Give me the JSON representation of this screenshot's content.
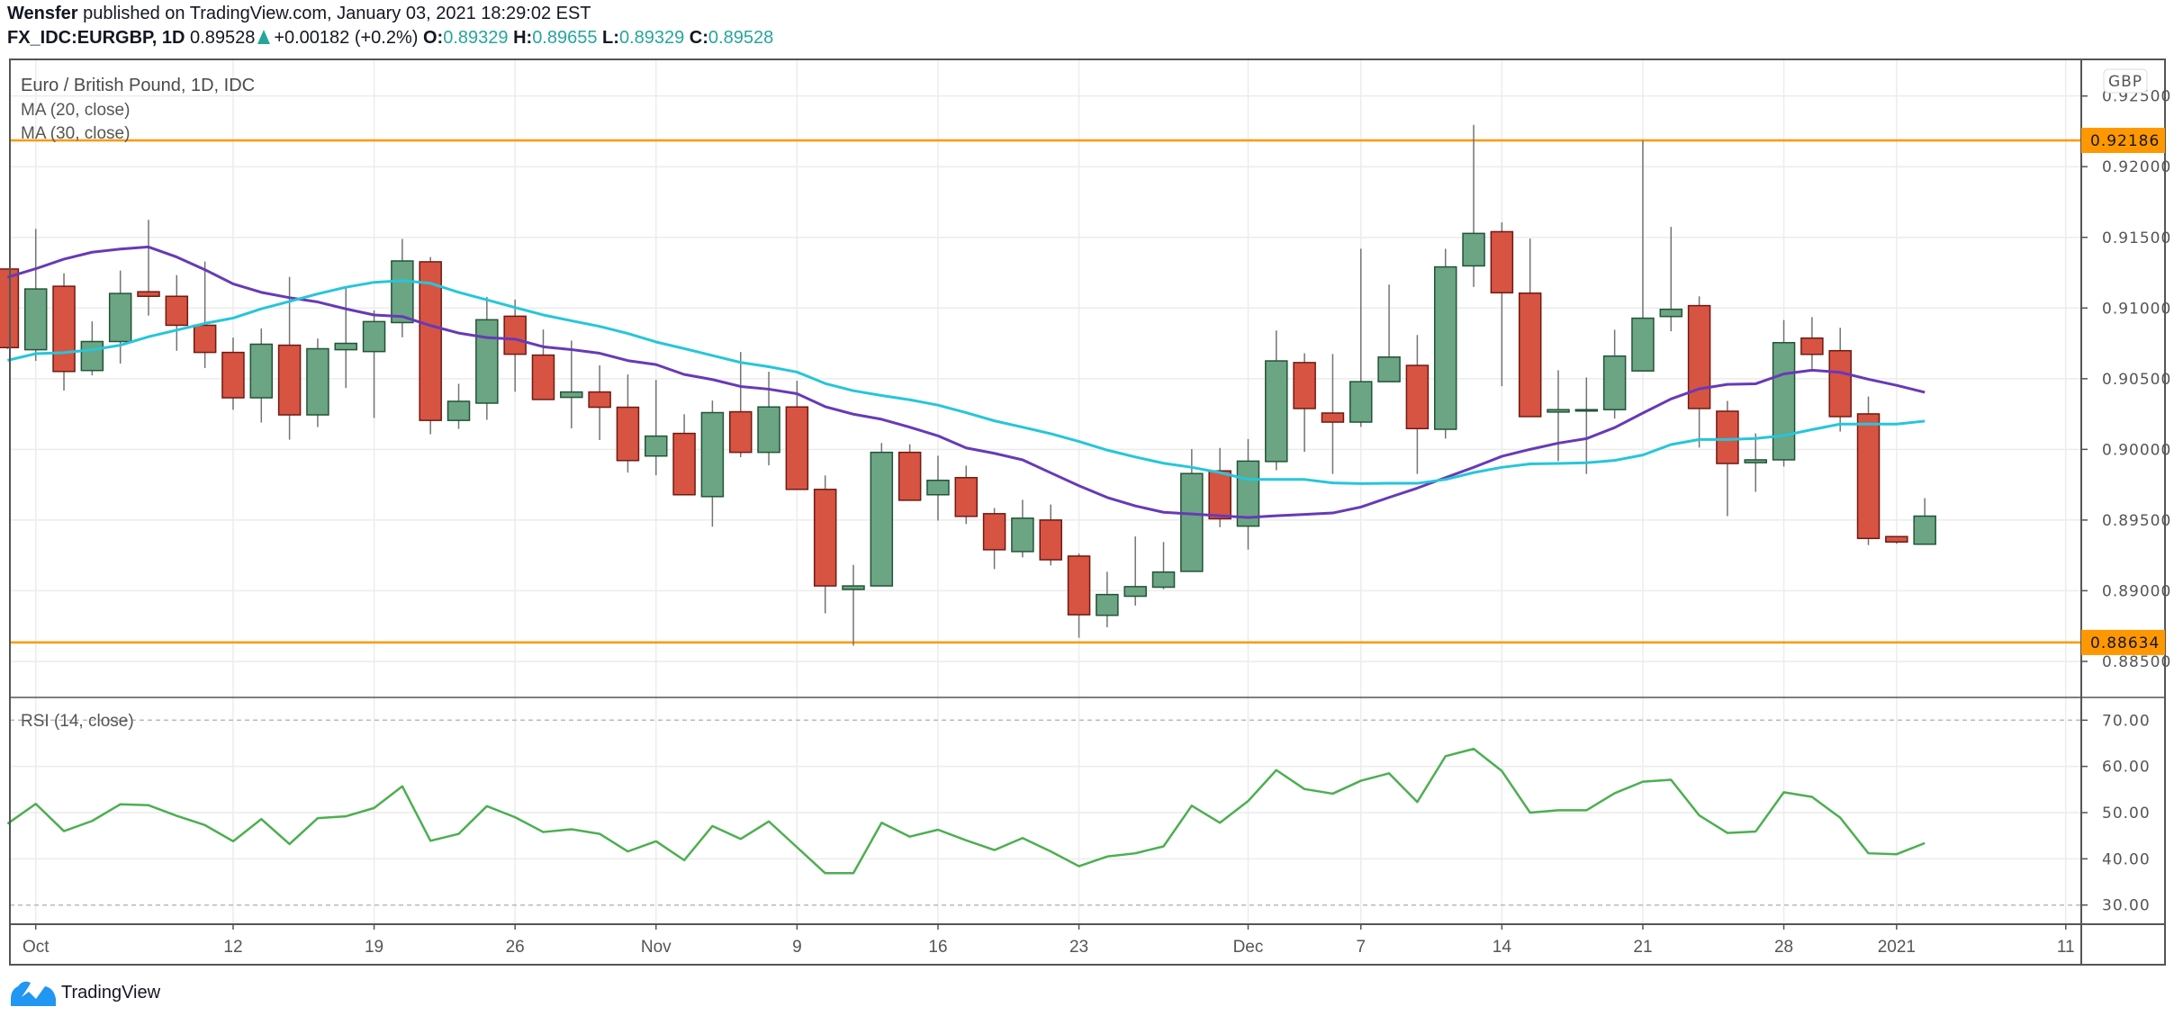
{
  "header": {
    "author": "Wensfer",
    "published": "published on TradingView.com, January 03, 2021 18:29:02 EST",
    "symbol": "FX_IDC:EURGBP, 1D",
    "last": "0.89528",
    "change": "+0.00182 (+0.2%)",
    "direction_icon": "triangle-up-icon",
    "o_label": "O:",
    "o": "0.89329",
    "h_label": "H:",
    "h": "0.89655",
    "l_label": "L:",
    "l": "0.89329",
    "c_label": "C:",
    "c": "0.89528"
  },
  "legend": {
    "title": "Euro / British Pound, 1D, IDC",
    "ma20": "MA (20, close)",
    "ma30": "MA (30, close)",
    "rsi": "RSI (14, close)"
  },
  "currency": "GBP",
  "footer": {
    "brand": "TradingView",
    "logo_icon": "tradingview-logo-icon"
  },
  "colors": {
    "up": "#6ba583",
    "up_border": "#225437",
    "down": "#d75442",
    "down_border": "#6f1a13",
    "wick": "#737375",
    "ma20": "#673ab7",
    "ma30": "#26c6da",
    "rsi": "#4caf50",
    "level": "#ff9800"
  },
  "chart_data": [
    {
      "type": "candlestick",
      "title": "Euro / British Pound, 1D, IDC",
      "ylim": [
        0.883,
        0.9262
      ],
      "y_ticks": [
        "0.88500",
        "0.89000",
        "0.89500",
        "0.90000",
        "0.90500",
        "0.91000",
        "0.91500",
        "0.92000",
        "0.92500"
      ],
      "x_ticks": [
        "Oct",
        "12",
        "19",
        "26",
        "Nov",
        "9",
        "16",
        "23",
        "Dec",
        "7",
        "14",
        "21",
        "28",
        "2021",
        "11"
      ],
      "horizontal_levels": [
        {
          "value": 0.92186,
          "label": "0.92186"
        },
        {
          "value": 0.88634,
          "label": "0.88634"
        }
      ],
      "grid": true,
      "ohlc": [
        [
          0.91276,
          0.9128,
          0.9071,
          0.9072
        ],
        [
          0.90705,
          0.9156,
          0.90626,
          0.91135
        ],
        [
          0.91154,
          0.91246,
          0.90415,
          0.90551
        ],
        [
          0.90558,
          0.90906,
          0.90524,
          0.90763
        ],
        [
          0.90763,
          0.91265,
          0.90607,
          0.91103
        ],
        [
          0.91115,
          0.91624,
          0.90947,
          0.91083
        ],
        [
          0.91083,
          0.91233,
          0.90697,
          0.90878
        ],
        [
          0.90878,
          0.91329,
          0.90575,
          0.90686
        ],
        [
          0.90686,
          0.90791,
          0.9028,
          0.90365
        ],
        [
          0.90365,
          0.90855,
          0.9019,
          0.90744
        ],
        [
          0.90737,
          0.9122,
          0.90068,
          0.90244
        ],
        [
          0.90244,
          0.90784,
          0.90158,
          0.90712
        ],
        [
          0.90705,
          0.91147,
          0.90434,
          0.9075
        ],
        [
          0.90692,
          0.90983,
          0.90222,
          0.90904
        ],
        [
          0.90897,
          0.91489,
          0.90793,
          0.91333
        ],
        [
          0.91327,
          0.91361,
          0.90107,
          0.90205
        ],
        [
          0.90205,
          0.90464,
          0.90145,
          0.9034
        ],
        [
          0.90327,
          0.91079,
          0.90209,
          0.90917
        ],
        [
          0.90942,
          0.9106,
          0.90408,
          0.90673
        ],
        [
          0.90667,
          0.90848,
          0.90353,
          0.90353
        ],
        [
          0.90368,
          0.9077,
          0.90149,
          0.90406
        ],
        [
          0.90406,
          0.90594,
          0.90066,
          0.90298
        ],
        [
          0.90298,
          0.9053,
          0.89836,
          0.89921
        ],
        [
          0.89953,
          0.90491,
          0.89817,
          0.90094
        ],
        [
          0.90113,
          0.90249,
          0.89679,
          0.89679
        ],
        [
          0.89666,
          0.90345,
          0.89453,
          0.9026
        ],
        [
          0.90266,
          0.90689,
          0.89945,
          0.89979
        ],
        [
          0.89979,
          0.90549,
          0.89887,
          0.903
        ],
        [
          0.903,
          0.90485,
          0.89717,
          0.89717
        ],
        [
          0.89717,
          0.89815,
          0.8884,
          0.89034
        ],
        [
          0.89009,
          0.89183,
          0.88611,
          0.89034
        ],
        [
          0.89034,
          0.90045,
          0.89034,
          0.89979
        ],
        [
          0.89979,
          0.90036,
          0.8964,
          0.8964
        ],
        [
          0.89679,
          0.89955,
          0.89496,
          0.89781
        ],
        [
          0.898,
          0.89885,
          0.89472,
          0.89526
        ],
        [
          0.89545,
          0.89585,
          0.89153,
          0.8929
        ],
        [
          0.89277,
          0.89643,
          0.89236,
          0.89513
        ],
        [
          0.895,
          0.8961,
          0.89179,
          0.89219
        ],
        [
          0.89245,
          0.89264,
          0.88668,
          0.8883
        ],
        [
          0.88826,
          0.89134,
          0.88741,
          0.88973
        ],
        [
          0.88961,
          0.89384,
          0.88895,
          0.89029
        ],
        [
          0.89025,
          0.89345,
          0.8901,
          0.89132
        ],
        [
          0.89137,
          0.90002,
          0.89137,
          0.89829
        ],
        [
          0.89848,
          0.9001,
          0.8945,
          0.89509
        ],
        [
          0.89457,
          0.90073,
          0.89291,
          0.89917
        ],
        [
          0.89914,
          0.90841,
          0.89853,
          0.90626
        ],
        [
          0.90614,
          0.9068,
          0.89983,
          0.90289
        ],
        [
          0.90257,
          0.90675,
          0.89826,
          0.90193
        ],
        [
          0.90193,
          0.9142,
          0.90159,
          0.90479
        ],
        [
          0.90479,
          0.91166,
          0.90479,
          0.90653
        ],
        [
          0.90594,
          0.90809,
          0.89826,
          0.90147
        ],
        [
          0.90142,
          0.9142,
          0.90076,
          0.91291
        ],
        [
          0.91298,
          0.92296,
          0.91149,
          0.91528
        ],
        [
          0.9154,
          0.91606,
          0.90447,
          0.91108
        ],
        [
          0.91105,
          0.91491,
          0.90232,
          0.90232
        ],
        [
          0.90264,
          0.9056,
          0.89917,
          0.90281
        ],
        [
          0.90281,
          0.90509,
          0.89826,
          0.90281
        ],
        [
          0.90281,
          0.90846,
          0.90218,
          0.9066
        ],
        [
          0.90555,
          0.92186,
          0.90555,
          0.90928
        ],
        [
          0.9094,
          0.91574,
          0.90836,
          0.90991
        ],
        [
          0.91017,
          0.91083,
          0.90013,
          0.90289
        ],
        [
          0.9027,
          0.90343,
          0.89528,
          0.899
        ],
        [
          0.89906,
          0.90113,
          0.897,
          0.89926
        ],
        [
          0.89926,
          0.90915,
          0.89879,
          0.90755
        ],
        [
          0.90787,
          0.90936,
          0.9057,
          0.90672
        ],
        [
          0.90698,
          0.9086,
          0.90126,
          0.90232
        ],
        [
          0.90251,
          0.90374,
          0.89323,
          0.8937
        ],
        [
          0.89383,
          0.89383,
          0.89332,
          0.89345
        ],
        [
          0.89329,
          0.89655,
          0.89329,
          0.89528
        ]
      ],
      "series": [
        {
          "name": "MA (20, close)",
          "type": "line",
          "values": [
            0.91218,
            0.91278,
            0.91346,
            0.91395,
            0.91417,
            0.91432,
            0.91361,
            0.91271,
            0.91171,
            0.91111,
            0.91073,
            0.91043,
            0.90994,
            0.90951,
            0.9094,
            0.90876,
            0.90823,
            0.90791,
            0.9078,
            0.90726,
            0.90706,
            0.9068,
            0.90628,
            0.906,
            0.9053,
            0.90494,
            0.90445,
            0.90426,
            0.90394,
            0.90302,
            0.90249,
            0.90213,
            0.90157,
            0.90096,
            0.9001,
            0.89972,
            0.89926,
            0.89834,
            0.89743,
            0.8966,
            0.896,
            0.89555,
            0.89543,
            0.8953,
            0.89518,
            0.8953,
            0.8954,
            0.8955,
            0.89592,
            0.8966,
            0.89726,
            0.898,
            0.89873,
            0.89951,
            0.9,
            0.90044,
            0.90076,
            0.90154,
            0.90257,
            0.90357,
            0.90428,
            0.9046,
            0.90464,
            0.90534,
            0.9056,
            0.90545,
            0.90496,
            0.90453,
            0.90404
          ]
        },
        {
          "name": "MA (30, close)",
          "type": "line",
          "values": [
            0.9063,
            0.90677,
            0.90684,
            0.90705,
            0.90737,
            0.90797,
            0.90844,
            0.90891,
            0.90929,
            0.90994,
            0.91047,
            0.911,
            0.91147,
            0.91182,
            0.91194,
            0.91175,
            0.91111,
            0.91058,
            0.91004,
            0.90951,
            0.9091,
            0.9087,
            0.9082,
            0.9076,
            0.90713,
            0.90664,
            0.90615,
            0.90585,
            0.90547,
            0.90466,
            0.90415,
            0.90381,
            0.90351,
            0.90313,
            0.9026,
            0.90202,
            0.90157,
            0.90111,
            0.90056,
            0.89995,
            0.89946,
            0.89902,
            0.89873,
            0.89836,
            0.89787,
            0.89787,
            0.89787,
            0.89763,
            0.89758,
            0.8976,
            0.8976,
            0.89787,
            0.89836,
            0.89873,
            0.89897,
            0.899,
            0.89905,
            0.89922,
            0.8996,
            0.90034,
            0.9007,
            0.9007,
            0.90077,
            0.90098,
            0.9014,
            0.90179,
            0.90179,
            0.90179,
            0.902
          ]
        }
      ]
    },
    {
      "type": "line",
      "title": "RSI (14, close)",
      "ylim": [
        26.5,
        77
      ],
      "y_ticks": [
        "30.00",
        "40.00",
        "50.00",
        "60.00",
        "70.00"
      ],
      "bands": [
        30,
        70
      ],
      "grid": true,
      "series": [
        {
          "name": "RSI (14, close)",
          "values": [
            47.6,
            51.9,
            46.0,
            48.2,
            51.8,
            51.6,
            49.3,
            47.3,
            43.8,
            48.6,
            43.2,
            48.8,
            49.2,
            51.0,
            55.7,
            43.9,
            45.4,
            51.4,
            49.0,
            45.8,
            46.4,
            45.4,
            41.6,
            43.8,
            39.7,
            47.1,
            44.3,
            48.1,
            42.5,
            36.9,
            36.9,
            47.8,
            44.8,
            46.3,
            44.0,
            41.9,
            44.5,
            41.6,
            38.4,
            40.5,
            41.2,
            42.7,
            51.5,
            47.8,
            52.5,
            59.2,
            55.1,
            54.1,
            56.9,
            58.5,
            52.3,
            62.2,
            63.8,
            59.0,
            50.0,
            50.5,
            50.5,
            54.2,
            56.7,
            57.1,
            49.4,
            45.6,
            45.9,
            54.4,
            53.4,
            48.9,
            41.2,
            41.0,
            43.4
          ]
        }
      ]
    }
  ]
}
